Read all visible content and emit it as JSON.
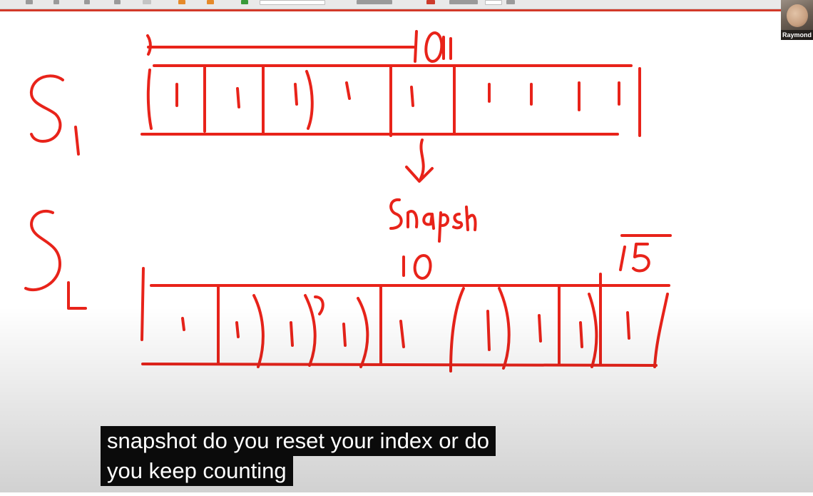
{
  "window": {
    "accent_color": "#d23a2a",
    "background": "#ffffff"
  },
  "toolbar": {
    "icons": [
      "pen-icon",
      "highlighter-icon",
      "text-icon",
      "shape-icon",
      "undo-icon",
      "check-icon",
      "zoom-icon",
      "page-icon"
    ]
  },
  "webcam": {
    "name": "Raymond"
  },
  "whiteboard": {
    "ink_color": "#e8231a",
    "s1_label": "S",
    "s1_sub": "1",
    "s2_label": "S",
    "s2_sub": "2",
    "top_number": "10",
    "arrow_note": "Snapsh",
    "s2_mid_number": "10",
    "s2_right_number": "15"
  },
  "caption": {
    "line1": "snapshot do you reset your index or do",
    "line2": "you keep counting"
  }
}
